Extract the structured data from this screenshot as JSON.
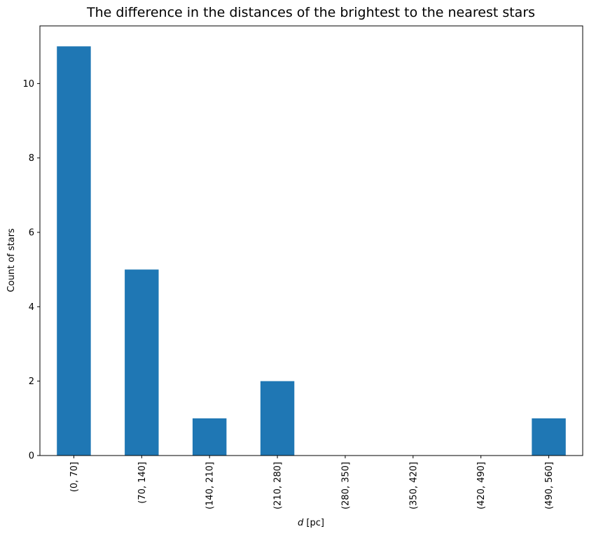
{
  "chart_data": {
    "type": "bar",
    "title": "The difference in the distances of the brightest to the nearest stars",
    "xlabel": {
      "var": "d",
      "unit": " [pc]"
    },
    "ylabel": "Count of stars",
    "categories": [
      "(0, 70]",
      "(70, 140]",
      "(140, 210]",
      "(210, 280]",
      "(280, 350]",
      "(350, 420]",
      "(420, 490]",
      "(490, 560]"
    ],
    "values": [
      11,
      5,
      1,
      2,
      0,
      0,
      0,
      1
    ],
    "ylim": [
      0,
      11.55
    ],
    "yticks": [
      0,
      2,
      4,
      6,
      8,
      10
    ],
    "grid": false,
    "legend": "none",
    "colors": {
      "bar": "#1f77b4"
    }
  }
}
